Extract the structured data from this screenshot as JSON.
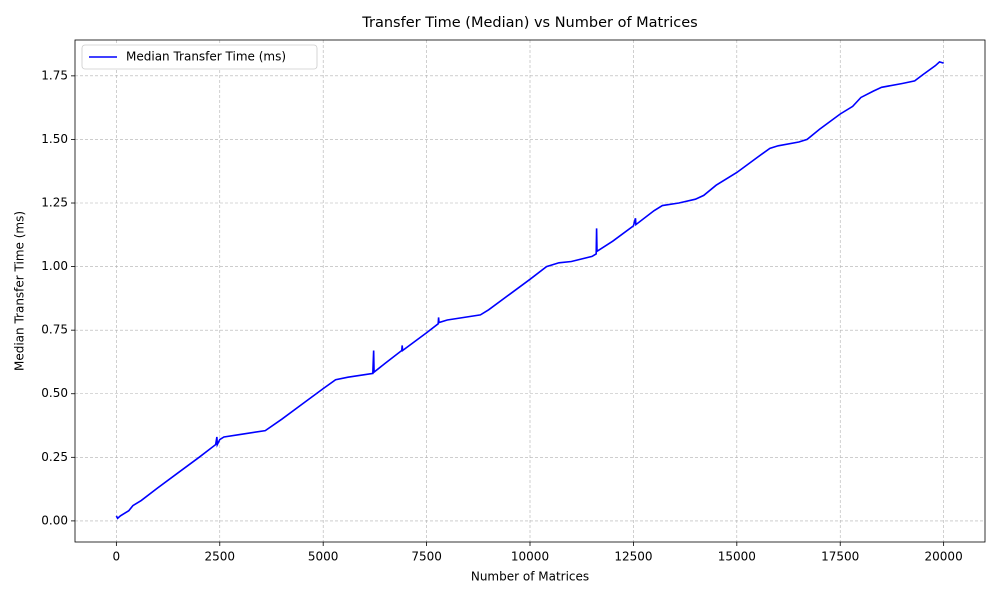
{
  "chart_data": {
    "type": "line",
    "title": "Transfer Time (Median) vs Number of Matrices",
    "x_label": "Number of Matrices",
    "y_label": "Median Transfer Time (ms)",
    "legend": "upper left",
    "grid": true,
    "xlim": [
      -1000,
      21000
    ],
    "ylim": [
      -0.083,
      1.891
    ],
    "xticks": [
      0,
      2500,
      5000,
      7500,
      10000,
      12500,
      15000,
      17500,
      20000
    ],
    "yticks": [
      {
        "value": 0,
        "label": "0.00"
      },
      {
        "value": 0.25,
        "label": "0.25"
      },
      {
        "value": 0.5,
        "label": "0.50"
      },
      {
        "value": 0.75,
        "label": "0.75"
      },
      {
        "value": 1,
        "label": "1.00"
      },
      {
        "value": 1.25,
        "label": "1.25"
      },
      {
        "value": 1.5,
        "label": "1.50"
      },
      {
        "value": 1.75,
        "label": "1.75"
      }
    ],
    "x": [
      0,
      30,
      100,
      300,
      400,
      600,
      1000,
      1500,
      2000,
      2400,
      2430,
      2440,
      2500,
      2600,
      3000,
      3600,
      4000,
      4500,
      5000,
      5300,
      5600,
      6000,
      6200,
      6220,
      6230,
      6500,
      6900,
      6910,
      6920,
      7500,
      7780,
      7790,
      7800,
      8000,
      8800,
      9000,
      9500,
      10000,
      10400,
      10700,
      11000,
      11500,
      11600,
      11610,
      11620,
      12000,
      12500,
      12550,
      12560,
      13000,
      13200,
      13600,
      14000,
      14200,
      14500,
      15000,
      15500,
      15800,
      16000,
      16500,
      16700,
      17000,
      17500,
      17800,
      18000,
      18300,
      18500,
      19000,
      19300,
      19500,
      19800,
      19900,
      20000
    ],
    "series": [
      {
        "name": "Median Transfer Time (ms)",
        "color": "#0000ff",
        "values": [
          0.02,
          0.01,
          0.02,
          0.04,
          0.06,
          0.08,
          0.13,
          0.19,
          0.25,
          0.3,
          0.33,
          0.3,
          0.32,
          0.33,
          0.34,
          0.355,
          0.4,
          0.46,
          0.52,
          0.555,
          0.565,
          0.575,
          0.58,
          0.67,
          0.585,
          0.62,
          0.67,
          0.69,
          0.67,
          0.74,
          0.775,
          0.8,
          0.78,
          0.79,
          0.81,
          0.83,
          0.89,
          0.95,
          1.0,
          1.015,
          1.02,
          1.04,
          1.05,
          1.15,
          1.06,
          1.1,
          1.16,
          1.19,
          1.165,
          1.22,
          1.24,
          1.25,
          1.265,
          1.28,
          1.32,
          1.37,
          1.43,
          1.465,
          1.475,
          1.49,
          1.5,
          1.54,
          1.6,
          1.63,
          1.665,
          1.69,
          1.705,
          1.72,
          1.73,
          1.755,
          1.79,
          1.805,
          1.8
        ]
      }
    ]
  }
}
